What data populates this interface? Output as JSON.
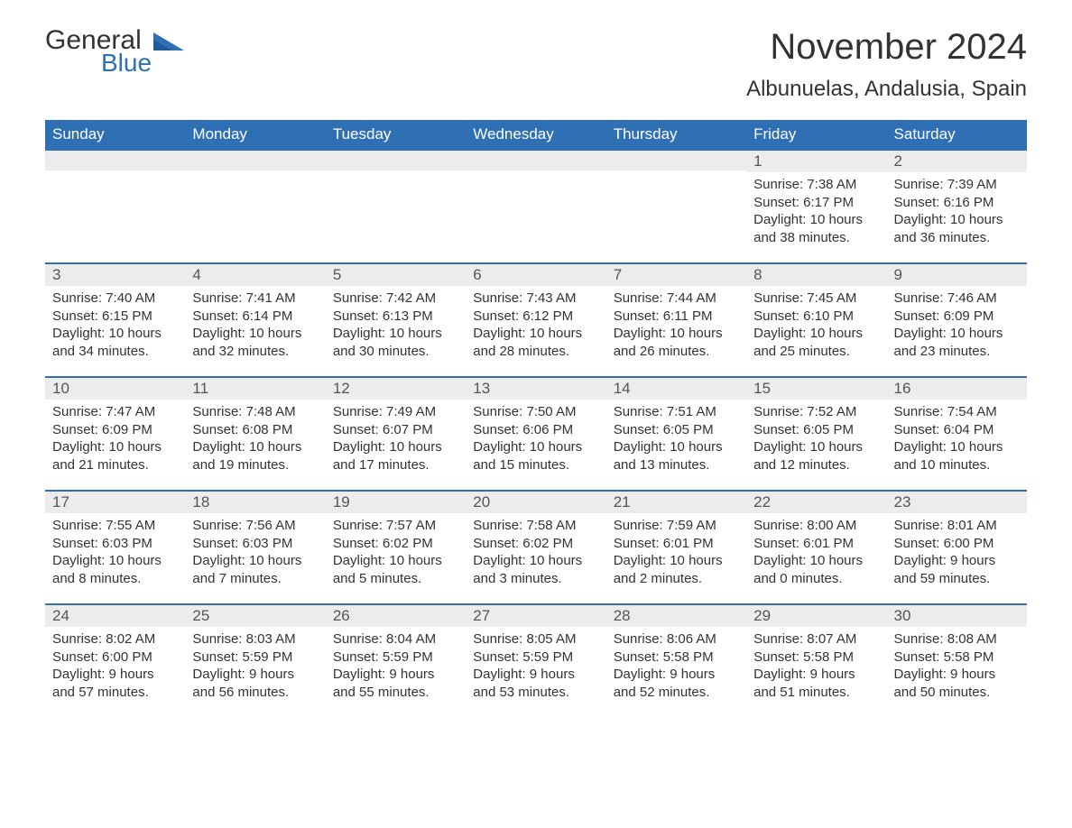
{
  "logo": {
    "general": "General",
    "blue": "Blue"
  },
  "title": "November 2024",
  "location": "Albunuelas, Andalusia, Spain",
  "colors": {
    "brand": "#2f6fb4",
    "header_text": "#ffffff",
    "daynum_bg": "#ececec",
    "text": "#333333",
    "body_bg": "#ffffff"
  },
  "weekdays": [
    "Sunday",
    "Monday",
    "Tuesday",
    "Wednesday",
    "Thursday",
    "Friday",
    "Saturday"
  ],
  "weeks": [
    [
      null,
      null,
      null,
      null,
      null,
      {
        "n": "1",
        "sunrise": "Sunrise: 7:38 AM",
        "sunset": "Sunset: 6:17 PM",
        "day1": "Daylight: 10 hours",
        "day2": "and 38 minutes."
      },
      {
        "n": "2",
        "sunrise": "Sunrise: 7:39 AM",
        "sunset": "Sunset: 6:16 PM",
        "day1": "Daylight: 10 hours",
        "day2": "and 36 minutes."
      }
    ],
    [
      {
        "n": "3",
        "sunrise": "Sunrise: 7:40 AM",
        "sunset": "Sunset: 6:15 PM",
        "day1": "Daylight: 10 hours",
        "day2": "and 34 minutes."
      },
      {
        "n": "4",
        "sunrise": "Sunrise: 7:41 AM",
        "sunset": "Sunset: 6:14 PM",
        "day1": "Daylight: 10 hours",
        "day2": "and 32 minutes."
      },
      {
        "n": "5",
        "sunrise": "Sunrise: 7:42 AM",
        "sunset": "Sunset: 6:13 PM",
        "day1": "Daylight: 10 hours",
        "day2": "and 30 minutes."
      },
      {
        "n": "6",
        "sunrise": "Sunrise: 7:43 AM",
        "sunset": "Sunset: 6:12 PM",
        "day1": "Daylight: 10 hours",
        "day2": "and 28 minutes."
      },
      {
        "n": "7",
        "sunrise": "Sunrise: 7:44 AM",
        "sunset": "Sunset: 6:11 PM",
        "day1": "Daylight: 10 hours",
        "day2": "and 26 minutes."
      },
      {
        "n": "8",
        "sunrise": "Sunrise: 7:45 AM",
        "sunset": "Sunset: 6:10 PM",
        "day1": "Daylight: 10 hours",
        "day2": "and 25 minutes."
      },
      {
        "n": "9",
        "sunrise": "Sunrise: 7:46 AM",
        "sunset": "Sunset: 6:09 PM",
        "day1": "Daylight: 10 hours",
        "day2": "and 23 minutes."
      }
    ],
    [
      {
        "n": "10",
        "sunrise": "Sunrise: 7:47 AM",
        "sunset": "Sunset: 6:09 PM",
        "day1": "Daylight: 10 hours",
        "day2": "and 21 minutes."
      },
      {
        "n": "11",
        "sunrise": "Sunrise: 7:48 AM",
        "sunset": "Sunset: 6:08 PM",
        "day1": "Daylight: 10 hours",
        "day2": "and 19 minutes."
      },
      {
        "n": "12",
        "sunrise": "Sunrise: 7:49 AM",
        "sunset": "Sunset: 6:07 PM",
        "day1": "Daylight: 10 hours",
        "day2": "and 17 minutes."
      },
      {
        "n": "13",
        "sunrise": "Sunrise: 7:50 AM",
        "sunset": "Sunset: 6:06 PM",
        "day1": "Daylight: 10 hours",
        "day2": "and 15 minutes."
      },
      {
        "n": "14",
        "sunrise": "Sunrise: 7:51 AM",
        "sunset": "Sunset: 6:05 PM",
        "day1": "Daylight: 10 hours",
        "day2": "and 13 minutes."
      },
      {
        "n": "15",
        "sunrise": "Sunrise: 7:52 AM",
        "sunset": "Sunset: 6:05 PM",
        "day1": "Daylight: 10 hours",
        "day2": "and 12 minutes."
      },
      {
        "n": "16",
        "sunrise": "Sunrise: 7:54 AM",
        "sunset": "Sunset: 6:04 PM",
        "day1": "Daylight: 10 hours",
        "day2": "and 10 minutes."
      }
    ],
    [
      {
        "n": "17",
        "sunrise": "Sunrise: 7:55 AM",
        "sunset": "Sunset: 6:03 PM",
        "day1": "Daylight: 10 hours",
        "day2": "and 8 minutes."
      },
      {
        "n": "18",
        "sunrise": "Sunrise: 7:56 AM",
        "sunset": "Sunset: 6:03 PM",
        "day1": "Daylight: 10 hours",
        "day2": "and 7 minutes."
      },
      {
        "n": "19",
        "sunrise": "Sunrise: 7:57 AM",
        "sunset": "Sunset: 6:02 PM",
        "day1": "Daylight: 10 hours",
        "day2": "and 5 minutes."
      },
      {
        "n": "20",
        "sunrise": "Sunrise: 7:58 AM",
        "sunset": "Sunset: 6:02 PM",
        "day1": "Daylight: 10 hours",
        "day2": "and 3 minutes."
      },
      {
        "n": "21",
        "sunrise": "Sunrise: 7:59 AM",
        "sunset": "Sunset: 6:01 PM",
        "day1": "Daylight: 10 hours",
        "day2": "and 2 minutes."
      },
      {
        "n": "22",
        "sunrise": "Sunrise: 8:00 AM",
        "sunset": "Sunset: 6:01 PM",
        "day1": "Daylight: 10 hours",
        "day2": "and 0 minutes."
      },
      {
        "n": "23",
        "sunrise": "Sunrise: 8:01 AM",
        "sunset": "Sunset: 6:00 PM",
        "day1": "Daylight: 9 hours",
        "day2": "and 59 minutes."
      }
    ],
    [
      {
        "n": "24",
        "sunrise": "Sunrise: 8:02 AM",
        "sunset": "Sunset: 6:00 PM",
        "day1": "Daylight: 9 hours",
        "day2": "and 57 minutes."
      },
      {
        "n": "25",
        "sunrise": "Sunrise: 8:03 AM",
        "sunset": "Sunset: 5:59 PM",
        "day1": "Daylight: 9 hours",
        "day2": "and 56 minutes."
      },
      {
        "n": "26",
        "sunrise": "Sunrise: 8:04 AM",
        "sunset": "Sunset: 5:59 PM",
        "day1": "Daylight: 9 hours",
        "day2": "and 55 minutes."
      },
      {
        "n": "27",
        "sunrise": "Sunrise: 8:05 AM",
        "sunset": "Sunset: 5:59 PM",
        "day1": "Daylight: 9 hours",
        "day2": "and 53 minutes."
      },
      {
        "n": "28",
        "sunrise": "Sunrise: 8:06 AM",
        "sunset": "Sunset: 5:58 PM",
        "day1": "Daylight: 9 hours",
        "day2": "and 52 minutes."
      },
      {
        "n": "29",
        "sunrise": "Sunrise: 8:07 AM",
        "sunset": "Sunset: 5:58 PM",
        "day1": "Daylight: 9 hours",
        "day2": "and 51 minutes."
      },
      {
        "n": "30",
        "sunrise": "Sunrise: 8:08 AM",
        "sunset": "Sunset: 5:58 PM",
        "day1": "Daylight: 9 hours",
        "day2": "and 50 minutes."
      }
    ]
  ]
}
